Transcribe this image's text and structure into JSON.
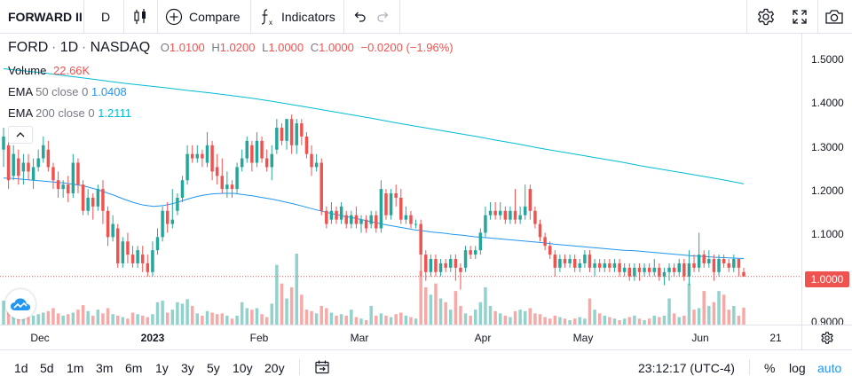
{
  "toolbar": {
    "symbol": "FORWARD II",
    "interval": "D",
    "compare_label": "Compare",
    "indicators_label": "Indicators"
  },
  "legend": {
    "symbol": "FORD",
    "interval": "1D",
    "exchange": "NASDAQ",
    "o_key": "O",
    "o_val": "1.0100",
    "h_key": "H",
    "h_val": "1.0200",
    "l_key": "L",
    "l_val": "1.0000",
    "c_key": "C",
    "c_val": "1.0000",
    "change": "−0.0200 (−1.96%)",
    "volume_label": "Volume",
    "volume_val": "22.66K",
    "ema50_label": "EMA",
    "ema50_params": "50 close 0",
    "ema50_val": "1.0408",
    "ema200_label": "EMA",
    "ema200_params": "200 close 0",
    "ema200_val": "1.2111"
  },
  "price_scale": {
    "labels": [
      "1.5000",
      "1.4000",
      "1.3000",
      "1.2000",
      "1.1000",
      "0.9000"
    ],
    "current_price": "1.0000"
  },
  "time_scale": {
    "labels": [
      {
        "text": "Dec",
        "bold": false
      },
      {
        "text": "2023",
        "bold": true
      },
      {
        "text": "Feb",
        "bold": false
      },
      {
        "text": "Mar",
        "bold": false
      },
      {
        "text": "Apr",
        "bold": false
      },
      {
        "text": "May",
        "bold": false
      },
      {
        "text": "Jun",
        "bold": false
      },
      {
        "text": "21",
        "bold": false
      }
    ]
  },
  "bottombar": {
    "ranges": [
      "1d",
      "5d",
      "1m",
      "3m",
      "6m",
      "1y",
      "3y",
      "5y",
      "10y",
      "20y"
    ],
    "clock": "23:12:17 (UTC-4)",
    "percent_label": "%",
    "log_label": "log",
    "auto_label": "auto"
  },
  "colors": {
    "up": "#26a69a",
    "down": "#ef5350",
    "ema50": "#2196f3",
    "ema200": "#00bcd4",
    "accent": "#2196f3"
  },
  "chart_data": {
    "type": "candlestick",
    "ylim": [
      0.89,
      1.555
    ],
    "candles": [
      {
        "o": 1.29,
        "c": 1.32,
        "h": 1.34,
        "l": 1.25,
        "v": 32
      },
      {
        "o": 1.3,
        "c": 1.22,
        "h": 1.32,
        "l": 1.2,
        "v": 20
      },
      {
        "o": 1.23,
        "c": 1.28,
        "h": 1.3,
        "l": 1.22,
        "v": 18
      },
      {
        "o": 1.27,
        "c": 1.23,
        "h": 1.29,
        "l": 1.21,
        "v": 14
      },
      {
        "o": 1.24,
        "c": 1.26,
        "h": 1.28,
        "l": 1.21,
        "v": 12
      },
      {
        "o": 1.26,
        "c": 1.24,
        "h": 1.28,
        "l": 1.22,
        "v": 10
      },
      {
        "o": 1.22,
        "c": 1.25,
        "h": 1.27,
        "l": 1.2,
        "v": 12
      },
      {
        "o": 1.25,
        "c": 1.27,
        "h": 1.29,
        "l": 1.24,
        "v": 14
      },
      {
        "o": 1.27,
        "c": 1.3,
        "h": 1.32,
        "l": 1.26,
        "v": 16
      },
      {
        "o": 1.29,
        "c": 1.25,
        "h": 1.31,
        "l": 1.24,
        "v": 18
      },
      {
        "o": 1.25,
        "c": 1.22,
        "h": 1.26,
        "l": 1.2,
        "v": 22
      },
      {
        "o": 1.22,
        "c": 1.2,
        "h": 1.24,
        "l": 1.18,
        "v": 15
      },
      {
        "o": 1.2,
        "c": 1.21,
        "h": 1.22,
        "l": 1.18,
        "v": 12
      },
      {
        "o": 1.21,
        "c": 1.19,
        "h": 1.23,
        "l": 1.17,
        "v": 14
      },
      {
        "o": 1.19,
        "c": 1.26,
        "h": 1.28,
        "l": 1.18,
        "v": 16
      },
      {
        "o": 1.26,
        "c": 1.21,
        "h": 1.27,
        "l": 1.19,
        "v": 20
      },
      {
        "o": 1.21,
        "c": 1.15,
        "h": 1.22,
        "l": 1.14,
        "v": 26
      },
      {
        "o": 1.15,
        "c": 1.18,
        "h": 1.2,
        "l": 1.14,
        "v": 18
      },
      {
        "o": 1.18,
        "c": 1.16,
        "h": 1.19,
        "l": 1.13,
        "v": 12
      },
      {
        "o": 1.16,
        "c": 1.2,
        "h": 1.21,
        "l": 1.15,
        "v": 20
      },
      {
        "o": 1.2,
        "c": 1.15,
        "h": 1.22,
        "l": 1.12,
        "v": 15
      },
      {
        "o": 1.15,
        "c": 1.09,
        "h": 1.16,
        "l": 1.07,
        "v": 22
      },
      {
        "o": 1.09,
        "c": 1.12,
        "h": 1.14,
        "l": 1.08,
        "v": 14
      },
      {
        "o": 1.11,
        "c": 1.03,
        "h": 1.12,
        "l": 1.02,
        "v": 12
      },
      {
        "o": 1.03,
        "c": 1.08,
        "h": 1.09,
        "l": 1.02,
        "v": 10
      },
      {
        "o": 1.08,
        "c": 1.05,
        "h": 1.1,
        "l": 1.03,
        "v": 8
      },
      {
        "o": 1.05,
        "c": 1.03,
        "h": 1.07,
        "l": 1.02,
        "v": 16
      },
      {
        "o": 1.03,
        "c": 1.06,
        "h": 1.07,
        "l": 1.02,
        "v": 14
      },
      {
        "o": 1.05,
        "c": 1.03,
        "h": 1.07,
        "l": 1.01,
        "v": 12
      },
      {
        "o": 1.03,
        "c": 1.01,
        "h": 1.05,
        "l": 1.0,
        "v": 10
      },
      {
        "o": 1.01,
        "c": 1.06,
        "h": 1.08,
        "l": 1.0,
        "v": 14
      },
      {
        "o": 1.06,
        "c": 1.09,
        "h": 1.11,
        "l": 1.05,
        "v": 30
      },
      {
        "o": 1.09,
        "c": 1.15,
        "h": 1.16,
        "l": 1.08,
        "v": 32
      },
      {
        "o": 1.15,
        "c": 1.12,
        "h": 1.17,
        "l": 1.1,
        "v": 16
      },
      {
        "o": 1.12,
        "c": 1.13,
        "h": 1.2,
        "l": 1.11,
        "v": 20
      },
      {
        "o": 1.15,
        "c": 1.18,
        "h": 1.19,
        "l": 1.14,
        "v": 30
      },
      {
        "o": 1.18,
        "c": 1.22,
        "h": 1.23,
        "l": 1.17,
        "v": 28
      },
      {
        "o": 1.22,
        "c": 1.28,
        "h": 1.3,
        "l": 1.21,
        "v": 34
      },
      {
        "o": 1.28,
        "c": 1.27,
        "h": 1.3,
        "l": 1.26,
        "v": 25
      },
      {
        "o": 1.27,
        "c": 1.28,
        "h": 1.3,
        "l": 1.26,
        "v": 15
      },
      {
        "o": 1.28,
        "c": 1.27,
        "h": 1.29,
        "l": 1.25,
        "v": 12
      },
      {
        "o": 1.26,
        "c": 1.3,
        "h": 1.33,
        "l": 1.25,
        "v": 18
      },
      {
        "o": 1.3,
        "c": 1.24,
        "h": 1.31,
        "l": 1.22,
        "v": 16
      },
      {
        "o": 1.25,
        "c": 1.23,
        "h": 1.28,
        "l": 1.21,
        "v": 14
      },
      {
        "o": 1.23,
        "c": 1.2,
        "h": 1.27,
        "l": 1.19,
        "v": 15
      },
      {
        "o": 1.2,
        "c": 1.21,
        "h": 1.24,
        "l": 1.18,
        "v": 12
      },
      {
        "o": 1.21,
        "c": 1.2,
        "h": 1.22,
        "l": 1.18,
        "v": 8
      },
      {
        "o": 1.2,
        "c": 1.25,
        "h": 1.26,
        "l": 1.19,
        "v": 12
      },
      {
        "o": 1.25,
        "c": 1.27,
        "h": 1.29,
        "l": 1.24,
        "v": 30
      },
      {
        "o": 1.27,
        "c": 1.31,
        "h": 1.32,
        "l": 1.26,
        "v": 22
      },
      {
        "o": 1.3,
        "c": 1.26,
        "h": 1.31,
        "l": 1.24,
        "v": 20
      },
      {
        "o": 1.26,
        "c": 1.31,
        "h": 1.33,
        "l": 1.25,
        "v": 22
      },
      {
        "o": 1.31,
        "c": 1.27,
        "h": 1.32,
        "l": 1.26,
        "v": 14
      },
      {
        "o": 1.27,
        "c": 1.25,
        "h": 1.29,
        "l": 1.24,
        "v": 10
      },
      {
        "o": 1.25,
        "c": 1.28,
        "h": 1.3,
        "l": 1.22,
        "v": 28
      },
      {
        "o": 1.29,
        "c": 1.34,
        "h": 1.36,
        "l": 1.28,
        "v": 80
      },
      {
        "o": 1.34,
        "c": 1.31,
        "h": 1.35,
        "l": 1.3,
        "v": 55
      },
      {
        "o": 1.31,
        "c": 1.36,
        "h": 1.36,
        "l": 1.29,
        "v": 35
      },
      {
        "o": 1.36,
        "c": 1.3,
        "h": 1.37,
        "l": 1.28,
        "v": 50
      },
      {
        "o": 1.3,
        "c": 1.35,
        "h": 1.36,
        "l": 1.28,
        "v": 95
      },
      {
        "o": 1.35,
        "c": 1.32,
        "h": 1.36,
        "l": 1.3,
        "v": 40
      },
      {
        "o": 1.32,
        "c": 1.28,
        "h": 1.33,
        "l": 1.27,
        "v": 20
      },
      {
        "o": 1.28,
        "c": 1.25,
        "h": 1.3,
        "l": 1.23,
        "v": 18
      },
      {
        "o": 1.25,
        "c": 1.26,
        "h": 1.28,
        "l": 1.24,
        "v": 15
      },
      {
        "o": 1.26,
        "c": 1.15,
        "h": 1.27,
        "l": 1.14,
        "v": 25
      },
      {
        "o": 1.15,
        "c": 1.12,
        "h": 1.16,
        "l": 1.11,
        "v": 22
      },
      {
        "o": 1.13,
        "c": 1.15,
        "h": 1.17,
        "l": 1.12,
        "v": 16
      },
      {
        "o": 1.15,
        "c": 1.13,
        "h": 1.16,
        "l": 1.12,
        "v": 12
      },
      {
        "o": 1.13,
        "c": 1.16,
        "h": 1.17,
        "l": 1.12,
        "v": 14
      },
      {
        "o": 1.14,
        "c": 1.12,
        "h": 1.15,
        "l": 1.11,
        "v": 12
      },
      {
        "o": 1.12,
        "c": 1.14,
        "h": 1.15,
        "l": 1.11,
        "v": 20
      },
      {
        "o": 1.14,
        "c": 1.12,
        "h": 1.16,
        "l": 1.11,
        "v": 10
      },
      {
        "o": 1.12,
        "c": 1.13,
        "h": 1.14,
        "l": 1.1,
        "v": 8
      },
      {
        "o": 1.13,
        "c": 1.11,
        "h": 1.14,
        "l": 1.1,
        "v": 6
      },
      {
        "o": 1.12,
        "c": 1.14,
        "h": 1.15,
        "l": 1.11,
        "v": 25
      },
      {
        "o": 1.14,
        "c": 1.11,
        "h": 1.15,
        "l": 1.1,
        "v": 12
      },
      {
        "o": 1.11,
        "c": 1.2,
        "h": 1.22,
        "l": 1.1,
        "v": 15
      },
      {
        "o": 1.19,
        "c": 1.14,
        "h": 1.2,
        "l": 1.13,
        "v": 12
      },
      {
        "o": 1.14,
        "c": 1.19,
        "h": 1.2,
        "l": 1.13,
        "v": 10
      },
      {
        "o": 1.19,
        "c": 1.18,
        "h": 1.21,
        "l": 1.16,
        "v": 14
      },
      {
        "o": 1.18,
        "c": 1.13,
        "h": 1.2,
        "l": 1.12,
        "v": 16
      },
      {
        "o": 1.13,
        "c": 1.14,
        "h": 1.16,
        "l": 1.12,
        "v": 12
      },
      {
        "o": 1.14,
        "c": 1.12,
        "h": 1.15,
        "l": 1.11,
        "v": 10
      },
      {
        "o": 1.12,
        "c": 1.12,
        "h": 1.13,
        "l": 1.11,
        "v": 8
      },
      {
        "o": 1.12,
        "c": 1.05,
        "h": 1.13,
        "l": 1.0,
        "v": 72
      },
      {
        "o": 1.05,
        "c": 1.01,
        "h": 1.06,
        "l": 0.99,
        "v": 50
      },
      {
        "o": 1.01,
        "c": 1.04,
        "h": 1.05,
        "l": 1.0,
        "v": 40
      },
      {
        "o": 1.04,
        "c": 1.01,
        "h": 1.05,
        "l": 1.0,
        "v": 55
      },
      {
        "o": 1.01,
        "c": 1.03,
        "h": 1.04,
        "l": 1.0,
        "v": 35
      },
      {
        "o": 1.03,
        "c": 1.02,
        "h": 1.04,
        "l": 1.01,
        "v": 30
      },
      {
        "o": 1.02,
        "c": 1.04,
        "h": 1.05,
        "l": 1.01,
        "v": 20
      },
      {
        "o": 1.04,
        "c": 1.02,
        "h": 1.05,
        "l": 0.99,
        "v": 45
      },
      {
        "o": 1.02,
        "c": 1.01,
        "h": 1.03,
        "l": 0.97,
        "v": 25
      },
      {
        "o": 1.02,
        "c": 1.06,
        "h": 1.07,
        "l": 1.01,
        "v": 15
      },
      {
        "o": 1.06,
        "c": 1.05,
        "h": 1.07,
        "l": 1.04,
        "v": 12
      },
      {
        "o": 1.05,
        "c": 1.06,
        "h": 1.07,
        "l": 1.04,
        "v": 20
      },
      {
        "o": 1.06,
        "c": 1.1,
        "h": 1.11,
        "l": 1.05,
        "v": 30
      },
      {
        "o": 1.1,
        "c": 1.14,
        "h": 1.16,
        "l": 1.09,
        "v": 50
      },
      {
        "o": 1.14,
        "c": 1.15,
        "h": 1.17,
        "l": 1.13,
        "v": 25
      },
      {
        "o": 1.15,
        "c": 1.14,
        "h": 1.17,
        "l": 1.13,
        "v": 18
      },
      {
        "o": 1.14,
        "c": 1.15,
        "h": 1.17,
        "l": 1.13,
        "v": 15
      },
      {
        "o": 1.15,
        "c": 1.13,
        "h": 1.16,
        "l": 1.12,
        "v": 12
      },
      {
        "o": 1.13,
        "c": 1.15,
        "h": 1.16,
        "l": 1.12,
        "v": 10
      },
      {
        "o": 1.15,
        "c": 1.13,
        "h": 1.2,
        "l": 1.12,
        "v": 18
      },
      {
        "o": 1.13,
        "c": 1.14,
        "h": 1.16,
        "l": 1.12,
        "v": 20
      },
      {
        "o": 1.14,
        "c": 1.16,
        "h": 1.21,
        "l": 1.13,
        "v": 18
      },
      {
        "o": 1.2,
        "c": 1.15,
        "h": 1.21,
        "l": 1.13,
        "v": 22
      },
      {
        "o": 1.15,
        "c": 1.12,
        "h": 1.16,
        "l": 1.11,
        "v": 15
      },
      {
        "o": 1.12,
        "c": 1.09,
        "h": 1.13,
        "l": 1.08,
        "v": 14
      },
      {
        "o": 1.09,
        "c": 1.07,
        "h": 1.1,
        "l": 1.06,
        "v": 10
      },
      {
        "o": 1.07,
        "c": 1.05,
        "h": 1.08,
        "l": 1.04,
        "v": 8
      },
      {
        "o": 1.05,
        "c": 1.02,
        "h": 1.06,
        "l": 1.0,
        "v": 12
      },
      {
        "o": 1.02,
        "c": 1.04,
        "h": 1.05,
        "l": 1.01,
        "v": 10
      },
      {
        "o": 1.04,
        "c": 1.03,
        "h": 1.05,
        "l": 1.02,
        "v": 8
      },
      {
        "o": 1.03,
        "c": 1.04,
        "h": 1.05,
        "l": 1.02,
        "v": 6
      },
      {
        "o": 1.04,
        "c": 1.02,
        "h": 1.05,
        "l": 1.01,
        "v": 8
      },
      {
        "o": 1.02,
        "c": 1.03,
        "h": 1.04,
        "l": 1.01,
        "v": 10
      },
      {
        "o": 1.03,
        "c": 1.05,
        "h": 1.06,
        "l": 1.02,
        "v": 8
      },
      {
        "o": 1.05,
        "c": 1.02,
        "h": 1.06,
        "l": 1.01,
        "v": 35
      },
      {
        "o": 1.02,
        "c": 1.03,
        "h": 1.04,
        "l": 1.0,
        "v": 20
      },
      {
        "o": 1.03,
        "c": 1.02,
        "h": 1.04,
        "l": 1.01,
        "v": 15
      },
      {
        "o": 1.02,
        "c": 1.03,
        "h": 1.04,
        "l": 1.01,
        "v": 12
      },
      {
        "o": 1.03,
        "c": 1.02,
        "h": 1.04,
        "l": 1.01,
        "v": 10
      },
      {
        "o": 1.02,
        "c": 1.03,
        "h": 1.04,
        "l": 1.01,
        "v": 8
      },
      {
        "o": 1.03,
        "c": 1.01,
        "h": 1.04,
        "l": 1.0,
        "v": 6
      },
      {
        "o": 1.01,
        "c": 1.02,
        "h": 1.03,
        "l": 1.0,
        "v": 8
      },
      {
        "o": 1.02,
        "c": 1.0,
        "h": 1.03,
        "l": 0.99,
        "v": 10
      },
      {
        "o": 1.0,
        "c": 1.02,
        "h": 1.03,
        "l": 0.99,
        "v": 12
      },
      {
        "o": 1.02,
        "c": 1.01,
        "h": 1.03,
        "l": 0.99,
        "v": 8
      },
      {
        "o": 1.01,
        "c": 1.02,
        "h": 1.03,
        "l": 1.0,
        "v": 6
      },
      {
        "o": 1.02,
        "c": 1.01,
        "h": 1.03,
        "l": 1.0,
        "v": 8
      },
      {
        "o": 1.01,
        "c": 1.02,
        "h": 1.04,
        "l": 1.0,
        "v": 12
      },
      {
        "o": 1.02,
        "c": 1.0,
        "h": 1.03,
        "l": 0.99,
        "v": 10
      },
      {
        "o": 1.0,
        "c": 1.01,
        "h": 1.02,
        "l": 0.98,
        "v": 12
      },
      {
        "o": 1.01,
        "c": 1.02,
        "h": 1.03,
        "l": 0.99,
        "v": 35
      },
      {
        "o": 1.02,
        "c": 1.01,
        "h": 1.03,
        "l": 1.0,
        "v": 15
      },
      {
        "o": 1.01,
        "c": 1.03,
        "h": 1.04,
        "l": 1.0,
        "v": 10
      },
      {
        "o": 1.03,
        "c": 1.0,
        "h": 1.04,
        "l": 0.99,
        "v": 12
      },
      {
        "o": 1.0,
        "c": 1.03,
        "h": 1.06,
        "l": 0.98,
        "v": 55
      },
      {
        "o": 1.03,
        "c": 1.02,
        "h": 1.05,
        "l": 1.01,
        "v": 20
      },
      {
        "o": 1.02,
        "c": 1.05,
        "h": 1.1,
        "l": 1.01,
        "v": 22
      },
      {
        "o": 1.05,
        "c": 1.03,
        "h": 1.06,
        "l": 1.02,
        "v": 45
      },
      {
        "o": 1.03,
        "c": 1.04,
        "h": 1.06,
        "l": 1.02,
        "v": 25
      },
      {
        "o": 1.04,
        "c": 1.01,
        "h": 1.05,
        "l": 0.99,
        "v": 30
      },
      {
        "o": 1.01,
        "c": 1.04,
        "h": 1.05,
        "l": 1.0,
        "v": 45
      },
      {
        "o": 1.04,
        "c": 1.03,
        "h": 1.05,
        "l": 1.02,
        "v": 40
      },
      {
        "o": 1.03,
        "c": 1.02,
        "h": 1.04,
        "l": 1.01,
        "v": 20
      },
      {
        "o": 1.02,
        "c": 1.04,
        "h": 1.05,
        "l": 1.01,
        "v": 25
      },
      {
        "o": 1.04,
        "c": 1.02,
        "h": 1.04,
        "l": 1.0,
        "v": 12
      },
      {
        "o": 1.01,
        "c": 1.0,
        "h": 1.02,
        "l": 1.0,
        "v": 22.66
      }
    ],
    "ema50": [
      1.225,
      1.224,
      1.222,
      1.22,
      1.218,
      1.216,
      1.214,
      1.211,
      1.207,
      1.201,
      1.194,
      1.186,
      1.177,
      1.169,
      1.163,
      1.16,
      1.162,
      1.167,
      1.174,
      1.181,
      1.186,
      1.189,
      1.19,
      1.19,
      1.187,
      1.184,
      1.18,
      1.176,
      1.171,
      1.166,
      1.16,
      1.154,
      1.148,
      1.143,
      1.138,
      1.134,
      1.129,
      1.124,
      1.119,
      1.115,
      1.111,
      1.107,
      1.104,
      1.101,
      1.099,
      1.096,
      1.094,
      1.091,
      1.089,
      1.087,
      1.085,
      1.083,
      1.081,
      1.079,
      1.077,
      1.074,
      1.072,
      1.07,
      1.068,
      1.066,
      1.064,
      1.062,
      1.06,
      1.059,
      1.057,
      1.055,
      1.053,
      1.051,
      1.049,
      1.047,
      1.046,
      1.044,
      1.043,
      1.042,
      1.041
    ],
    "ema200": [
      1.475,
      1.47,
      1.465,
      1.459,
      1.453,
      1.447,
      1.441,
      1.436,
      1.431,
      1.425,
      1.42,
      1.414,
      1.408,
      1.401,
      1.393,
      1.385,
      1.377,
      1.369,
      1.361,
      1.352,
      1.344,
      1.336,
      1.328,
      1.32,
      1.311,
      1.303,
      1.294,
      1.286,
      1.278,
      1.27,
      1.262,
      1.253,
      1.245,
      1.237,
      1.229,
      1.221,
      1.212
    ]
  }
}
